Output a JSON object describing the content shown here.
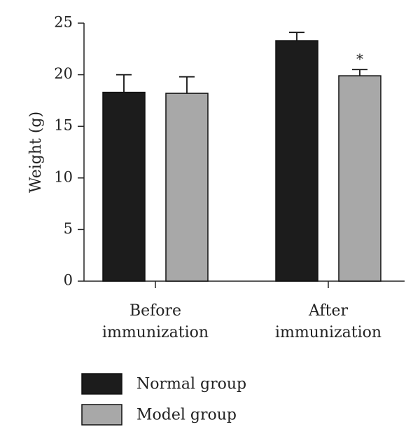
{
  "chart_data": {
    "type": "bar",
    "categories": [
      "Before\nimmunization",
      "After\nimmunization"
    ],
    "series": [
      {
        "name": "Normal group",
        "values": [
          18.3,
          23.3
        ],
        "errors": [
          1.7,
          0.8
        ],
        "color": "#1c1c1c"
      },
      {
        "name": "Model group",
        "values": [
          18.2,
          19.9
        ],
        "errors": [
          1.6,
          0.6
        ],
        "color": "#a8a8a8"
      }
    ],
    "annotations": [
      {
        "text": "*",
        "series": "Model group",
        "category_index": 1
      }
    ],
    "title": "",
    "xlabel": "",
    "ylabel": "Weight (g)",
    "ylim": [
      0,
      25
    ],
    "yticks": [
      0,
      5,
      10,
      15,
      20,
      25
    ],
    "grid": false,
    "legend_position": "bottom-left"
  }
}
